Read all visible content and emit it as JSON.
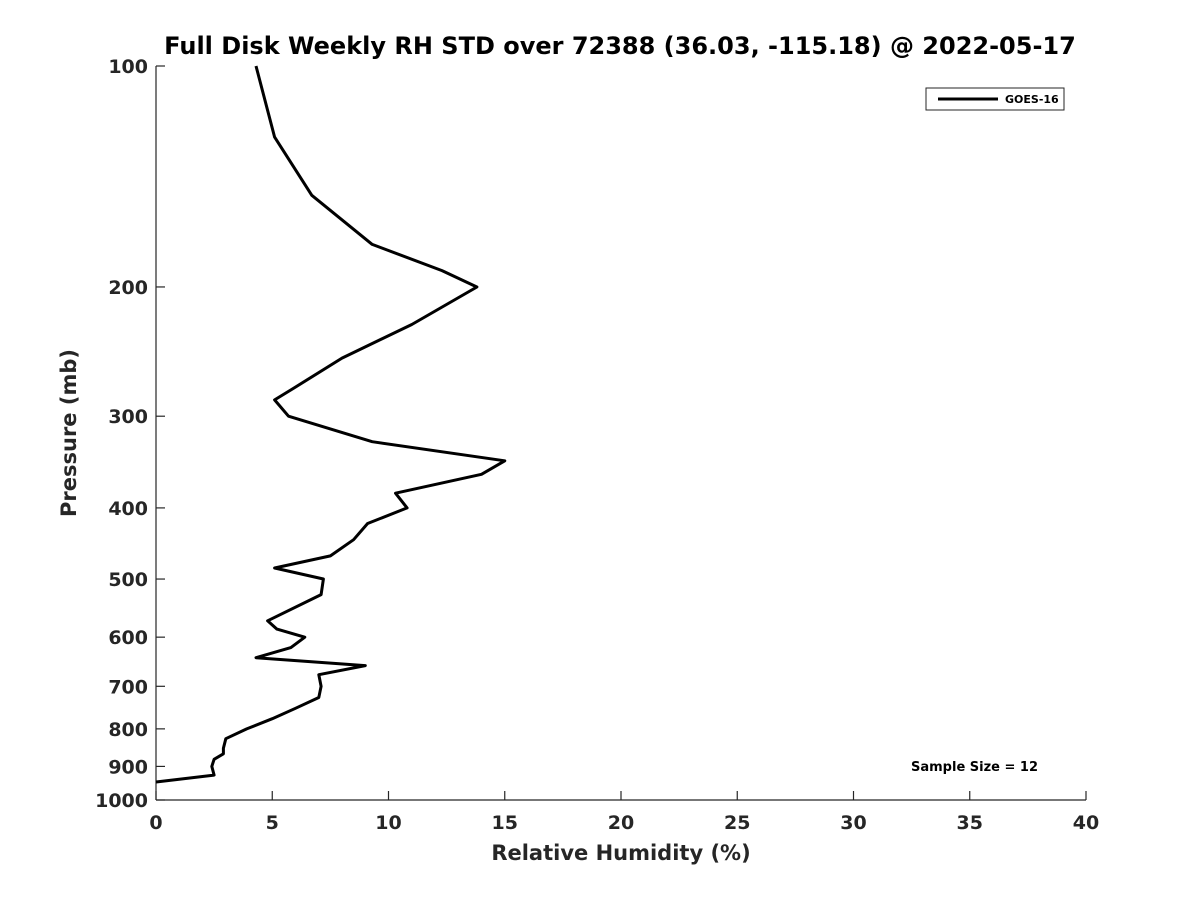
{
  "chart_data": {
    "type": "line",
    "title": "Full Disk Weekly RH STD over 72388 (36.03, -115.18) @ 2022-05-17",
    "xlabel": "Relative Humidity (%)",
    "ylabel": "Pressure (mb)",
    "xlim": [
      0,
      40
    ],
    "ylim": [
      100,
      1000
    ],
    "yscale": "log",
    "yreversed": true,
    "xticks": [
      0,
      5,
      10,
      15,
      20,
      25,
      30,
      35,
      40
    ],
    "yticks": [
      100,
      200,
      300,
      400,
      500,
      600,
      700,
      800,
      900,
      1000
    ],
    "grid": false,
    "legend": {
      "placement": "top-right"
    },
    "annotation": "Sample Size = 12",
    "series": [
      {
        "name": "GOES-16",
        "color": "#000000",
        "points": [
          [
            4.3,
            100
          ],
          [
            5.1,
            125
          ],
          [
            6.7,
            150
          ],
          [
            9.3,
            175
          ],
          [
            12.3,
            190
          ],
          [
            13.8,
            200
          ],
          [
            11.0,
            225
          ],
          [
            8.0,
            250
          ],
          [
            5.9,
            275
          ],
          [
            5.1,
            285
          ],
          [
            5.7,
            300
          ],
          [
            9.3,
            325
          ],
          [
            15.0,
            345
          ],
          [
            14.0,
            360
          ],
          [
            10.3,
            382
          ],
          [
            10.8,
            400
          ],
          [
            9.1,
            420
          ],
          [
            8.5,
            442
          ],
          [
            7.5,
            465
          ],
          [
            5.1,
            483
          ],
          [
            7.2,
            500
          ],
          [
            7.1,
            525
          ],
          [
            4.8,
            570
          ],
          [
            5.2,
            585
          ],
          [
            6.4,
            600
          ],
          [
            5.8,
            620
          ],
          [
            4.3,
            640
          ],
          [
            9.0,
            656
          ],
          [
            7.0,
            675
          ],
          [
            7.1,
            700
          ],
          [
            7.0,
            725
          ],
          [
            6.0,
            750
          ],
          [
            5.0,
            775
          ],
          [
            3.9,
            800
          ],
          [
            3.0,
            825
          ],
          [
            2.9,
            850
          ],
          [
            2.9,
            865
          ],
          [
            2.5,
            880
          ],
          [
            2.4,
            900
          ],
          [
            2.5,
            925
          ],
          [
            0.0,
            945
          ]
        ]
      }
    ]
  }
}
